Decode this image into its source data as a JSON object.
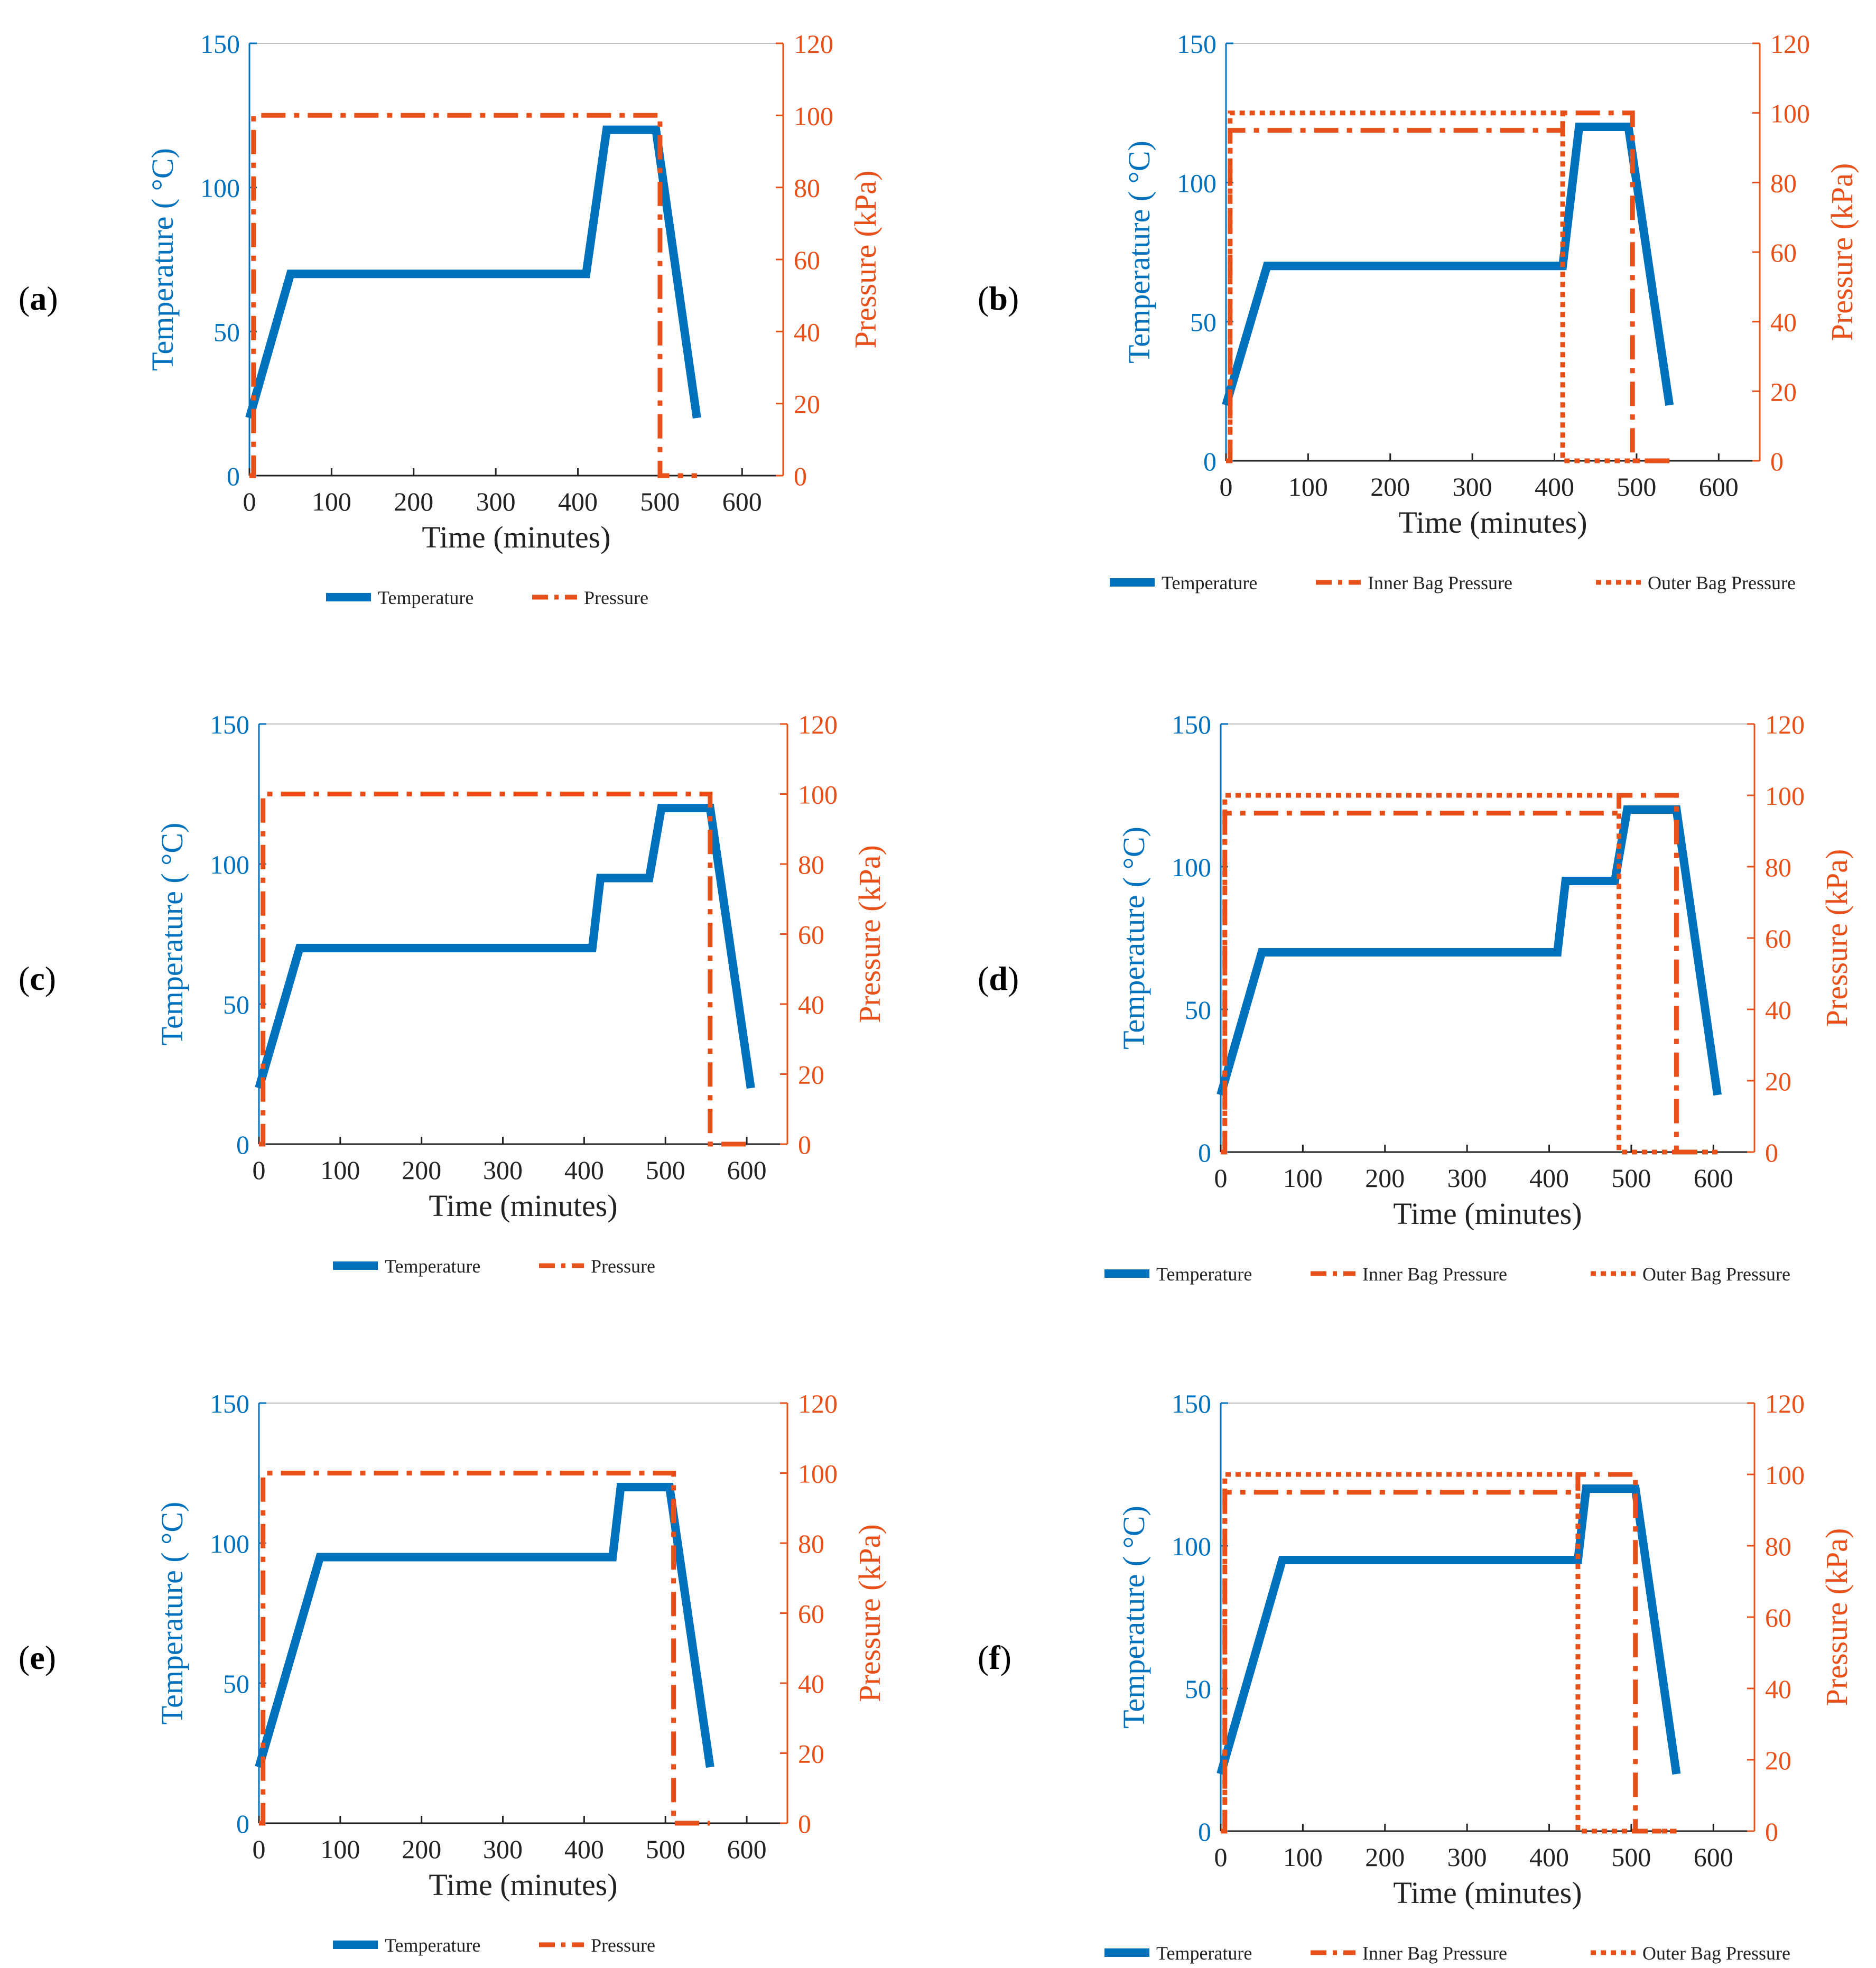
{
  "colors": {
    "temperature": "#0072BD",
    "pressure": "#E8501A",
    "axis_left": "#0072BD",
    "axis_right": "#E8501A"
  },
  "chart_data": [
    {
      "panel": "a",
      "type": "line",
      "xlabel": "Time (minutes)",
      "ylabel_left": "Temperature ( °C)",
      "ylabel_right": "Pressure (kPa)",
      "xlim": [
        0,
        650
      ],
      "ylim_left": [
        0,
        150
      ],
      "ylim_right": [
        0,
        120
      ],
      "xticks": [
        "0",
        "100",
        "200",
        "300",
        "400",
        "500",
        "600"
      ],
      "yticks_left": [
        "0",
        "50",
        "100",
        "150"
      ],
      "yticks_right": [
        "0",
        "20",
        "40",
        "60",
        "80",
        "100",
        "120"
      ],
      "legend": [
        "Temperature",
        "Pressure"
      ],
      "series": [
        {
          "name": "Temperature",
          "axis": "left",
          "style": "solid",
          "x": [
            0,
            50,
            410,
            435,
            495,
            545
          ],
          "y": [
            20,
            70,
            70,
            120,
            120,
            20
          ]
        },
        {
          "name": "Pressure",
          "axis": "right",
          "style": "dashdot",
          "x": [
            0,
            5,
            5,
            500,
            500,
            545
          ],
          "y": [
            0,
            0,
            100,
            100,
            0,
            0
          ]
        }
      ]
    },
    {
      "panel": "b",
      "type": "line",
      "xlabel": "Time (minutes)",
      "ylabel_left": "Temperature ( °C)",
      "ylabel_right": "Pressure (kPa)",
      "xlim": [
        0,
        650
      ],
      "ylim_left": [
        0,
        150
      ],
      "ylim_right": [
        0,
        120
      ],
      "xticks": [
        "0",
        "100",
        "200",
        "300",
        "400",
        "500",
        "600"
      ],
      "yticks_left": [
        "0",
        "50",
        "100",
        "150"
      ],
      "yticks_right": [
        "0",
        "20",
        "40",
        "60",
        "80",
        "100",
        "120"
      ],
      "legend": [
        "Temperature",
        "Inner Bag Pressure",
        "Outer Bag Pressure"
      ],
      "series": [
        {
          "name": "Temperature",
          "axis": "left",
          "style": "solid",
          "x": [
            0,
            50,
            410,
            430,
            490,
            540
          ],
          "y": [
            20,
            70,
            70,
            120,
            120,
            20
          ]
        },
        {
          "name": "Inner Bag Pressure",
          "axis": "right",
          "style": "dashdot",
          "x": [
            0,
            5,
            5,
            410,
            410,
            495,
            495,
            540
          ],
          "y": [
            0,
            0,
            95,
            95,
            100,
            100,
            0,
            0
          ]
        },
        {
          "name": "Outer Bag Pressure",
          "axis": "right",
          "style": "dotted",
          "x": [
            0,
            5,
            5,
            410,
            410,
            540
          ],
          "y": [
            0,
            0,
            100,
            100,
            0,
            0
          ]
        }
      ]
    },
    {
      "panel": "c",
      "type": "line",
      "xlabel": "Time (minutes)",
      "ylabel_left": "Temperature ( °C)",
      "ylabel_right": "Pressure (kPa)",
      "xlim": [
        0,
        650
      ],
      "ylim_left": [
        0,
        150
      ],
      "ylim_right": [
        0,
        120
      ],
      "xticks": [
        "0",
        "100",
        "200",
        "300",
        "400",
        "500",
        "600"
      ],
      "yticks_left": [
        "0",
        "50",
        "100",
        "150"
      ],
      "yticks_right": [
        "0",
        "20",
        "40",
        "60",
        "80",
        "100",
        "120"
      ],
      "legend": [
        "Temperature",
        "Pressure"
      ],
      "series": [
        {
          "name": "Temperature",
          "axis": "left",
          "style": "solid",
          "x": [
            0,
            50,
            410,
            420,
            480,
            495,
            555,
            605
          ],
          "y": [
            20,
            70,
            70,
            95,
            95,
            120,
            120,
            20
          ]
        },
        {
          "name": "Pressure",
          "axis": "right",
          "style": "dashdot",
          "x": [
            0,
            5,
            5,
            555,
            555,
            600
          ],
          "y": [
            0,
            0,
            100,
            100,
            0,
            0
          ]
        }
      ]
    },
    {
      "panel": "d",
      "type": "line",
      "xlabel": "Time (minutes)",
      "ylabel_left": "Temperature ( °C)",
      "ylabel_right": "Pressure (kPa)",
      "xlim": [
        0,
        650
      ],
      "ylim_left": [
        0,
        150
      ],
      "ylim_right": [
        0,
        120
      ],
      "xticks": [
        "0",
        "100",
        "200",
        "300",
        "400",
        "500",
        "600"
      ],
      "yticks_left": [
        "0",
        "50",
        "100",
        "150"
      ],
      "yticks_right": [
        "0",
        "20",
        "40",
        "60",
        "80",
        "100",
        "120"
      ],
      "legend": [
        "Temperature",
        "Inner Bag Pressure",
        "Outer Bag Pressure"
      ],
      "series": [
        {
          "name": "Temperature",
          "axis": "left",
          "style": "solid",
          "x": [
            0,
            50,
            410,
            420,
            480,
            495,
            555,
            605
          ],
          "y": [
            20,
            70,
            70,
            95,
            95,
            120,
            120,
            20
          ]
        },
        {
          "name": "Inner Bag Pressure",
          "axis": "right",
          "style": "dashdot",
          "x": [
            0,
            5,
            5,
            485,
            485,
            555,
            555,
            605
          ],
          "y": [
            0,
            0,
            95,
            95,
            100,
            100,
            0,
            0
          ]
        },
        {
          "name": "Outer Bag Pressure",
          "axis": "right",
          "style": "dotted",
          "x": [
            0,
            5,
            5,
            485,
            485,
            605
          ],
          "y": [
            0,
            0,
            100,
            100,
            0,
            0
          ]
        }
      ]
    },
    {
      "panel": "e",
      "type": "line",
      "xlabel": "Time (minutes)",
      "ylabel_left": "Temperature ( °C)",
      "ylabel_right": "Pressure (kPa)",
      "xlim": [
        0,
        650
      ],
      "ylim_left": [
        0,
        150
      ],
      "ylim_right": [
        0,
        120
      ],
      "xticks": [
        "0",
        "100",
        "200",
        "300",
        "400",
        "500",
        "600"
      ],
      "yticks_left": [
        "0",
        "50",
        "100",
        "150"
      ],
      "yticks_right": [
        "0",
        "20",
        "40",
        "60",
        "80",
        "100",
        "120"
      ],
      "legend": [
        "Temperature",
        "Pressure"
      ],
      "series": [
        {
          "name": "Temperature",
          "axis": "left",
          "style": "solid",
          "x": [
            0,
            75,
            435,
            445,
            505,
            555
          ],
          "y": [
            20,
            95,
            95,
            120,
            120,
            20
          ]
        },
        {
          "name": "Pressure",
          "axis": "right",
          "style": "dashdot",
          "x": [
            0,
            5,
            5,
            510,
            510,
            555
          ],
          "y": [
            0,
            0,
            100,
            100,
            0,
            0
          ]
        }
      ]
    },
    {
      "panel": "f",
      "type": "line",
      "xlabel": "Time (minutes)",
      "ylabel_left": "Temperature ( °C)",
      "ylabel_right": "Pressure (kPa)",
      "xlim": [
        0,
        650
      ],
      "ylim_left": [
        0,
        150
      ],
      "ylim_right": [
        0,
        120
      ],
      "xticks": [
        "0",
        "100",
        "200",
        "300",
        "400",
        "500",
        "600"
      ],
      "yticks_left": [
        "0",
        "50",
        "100",
        "150"
      ],
      "yticks_right": [
        "0",
        "20",
        "40",
        "60",
        "80",
        "100",
        "120"
      ],
      "legend": [
        "Temperature",
        "Inner Bag Pressure",
        "Outer Bag Pressure"
      ],
      "series": [
        {
          "name": "Temperature",
          "axis": "left",
          "style": "solid",
          "x": [
            0,
            75,
            435,
            445,
            505,
            555
          ],
          "y": [
            20,
            95,
            95,
            120,
            120,
            20
          ]
        },
        {
          "name": "Inner Bag Pressure",
          "axis": "right",
          "style": "dashdot",
          "x": [
            0,
            5,
            5,
            435,
            435,
            505,
            505,
            555
          ],
          "y": [
            0,
            0,
            95,
            95,
            100,
            100,
            0,
            0
          ]
        },
        {
          "name": "Outer Bag Pressure",
          "axis": "right",
          "style": "dotted",
          "x": [
            0,
            5,
            5,
            435,
            435,
            555
          ],
          "y": [
            0,
            0,
            100,
            100,
            0,
            0
          ]
        }
      ]
    }
  ]
}
